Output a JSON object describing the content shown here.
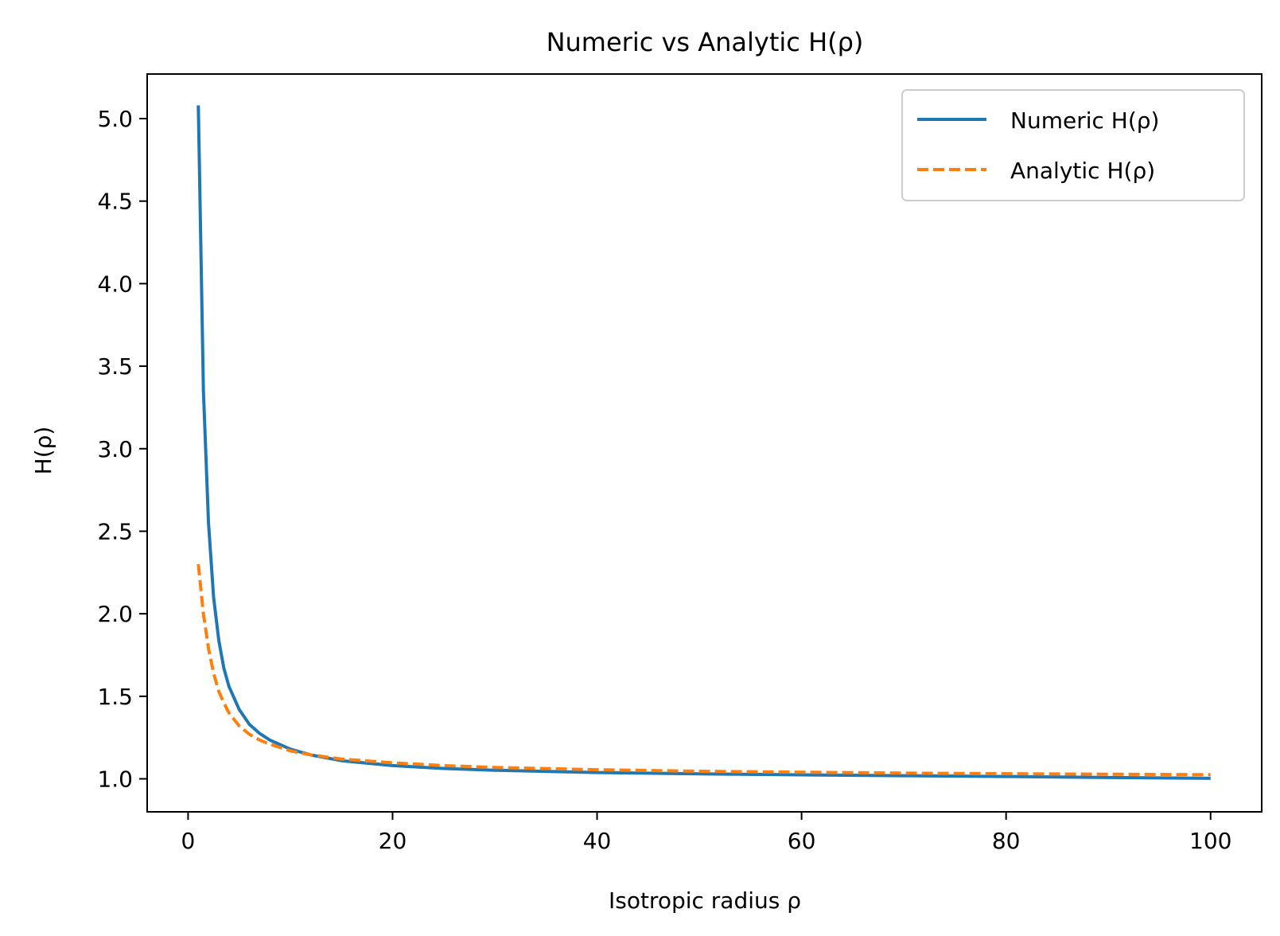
{
  "chart_data": {
    "type": "line",
    "title": "Numeric vs Analytic H(ρ)",
    "xlabel": "Isotropic radius ρ",
    "ylabel": "H(ρ)",
    "xlim": [
      -4,
      105
    ],
    "ylim": [
      0.8,
      5.27
    ],
    "x_ticks": [
      0,
      20,
      40,
      60,
      80,
      100
    ],
    "x_tick_labels": [
      "0",
      "20",
      "40",
      "60",
      "80",
      "100"
    ],
    "y_ticks": [
      1.0,
      1.5,
      2.0,
      2.5,
      3.0,
      3.5,
      4.0,
      4.5,
      5.0
    ],
    "y_tick_labels": [
      "1.0",
      "1.5",
      "2.0",
      "2.5",
      "3.0",
      "3.5",
      "4.0",
      "4.5",
      "5.0"
    ],
    "grid": false,
    "legend_position": "top-right",
    "series": [
      {
        "name": "Numeric H(ρ)",
        "color": "#1f77b4",
        "style": "solid",
        "x": [
          1,
          1.5,
          2,
          2.5,
          3,
          3.5,
          4,
          5,
          6,
          7,
          8,
          10,
          12,
          15,
          20,
          25,
          30,
          40,
          50,
          60,
          70,
          80,
          90,
          100
        ],
        "y": [
          5.08,
          3.35,
          2.55,
          2.1,
          1.84,
          1.67,
          1.56,
          1.42,
          1.33,
          1.275,
          1.235,
          1.18,
          1.145,
          1.11,
          1.08,
          1.063,
          1.052,
          1.038,
          1.03,
          1.024,
          1.019,
          1.014,
          1.008,
          1.003
        ]
      },
      {
        "name": "Analytic H(ρ)",
        "color": "#ff7f0e",
        "style": "dashed",
        "x": [
          1,
          1.5,
          2,
          2.5,
          3,
          3.5,
          4,
          5,
          6,
          7,
          8,
          10,
          12,
          15,
          20,
          25,
          30,
          40,
          50,
          60,
          70,
          80,
          90,
          100
        ],
        "y": [
          2.3,
          2.0,
          1.79,
          1.64,
          1.53,
          1.46,
          1.4,
          1.32,
          1.27,
          1.235,
          1.21,
          1.17,
          1.145,
          1.12,
          1.097,
          1.08,
          1.069,
          1.055,
          1.046,
          1.04,
          1.035,
          1.031,
          1.028,
          1.025
        ]
      }
    ]
  }
}
